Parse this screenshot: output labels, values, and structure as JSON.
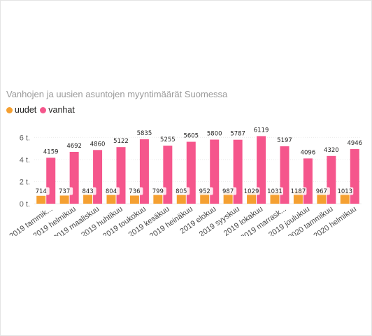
{
  "chart_data": {
    "type": "bar",
    "title": "Vanhojen ja uusien asuntojen myyntimäärät Suomessa",
    "xlabel": "",
    "ylabel": "",
    "categories": [
      "2019 tammik...",
      "2019 helmikuu",
      "2019 maaliskuu",
      "2019 huhtikuu",
      "2019 toukokuu",
      "2019 kesäkuu",
      "2019 heinäkuu",
      "2019 elokuu",
      "2019 syyskuu",
      "2019 lokakuu",
      "2019 marrask...",
      "2019 joulukuu",
      "2020 tammikuu",
      "2020 helmikuu"
    ],
    "series": [
      {
        "name": "uudet",
        "color": "#F5A031",
        "values": [
          714,
          737,
          843,
          804,
          736,
          799,
          805,
          952,
          987,
          1029,
          1031,
          1187,
          967,
          1013
        ]
      },
      {
        "name": "vanhat",
        "color": "#F5568C",
        "values": [
          4159,
          4692,
          4860,
          5122,
          5835,
          5255,
          5605,
          5800,
          5787,
          6119,
          5197,
          4096,
          4320,
          4946
        ]
      }
    ],
    "yticks": [
      {
        "value": 0,
        "label": "0 t."
      },
      {
        "value": 2000,
        "label": "2 t."
      },
      {
        "value": 4000,
        "label": "4 t."
      },
      {
        "value": 6000,
        "label": "6 t."
      }
    ],
    "ylim": [
      0,
      6400
    ],
    "grid": true,
    "legend_position": "top-left"
  }
}
